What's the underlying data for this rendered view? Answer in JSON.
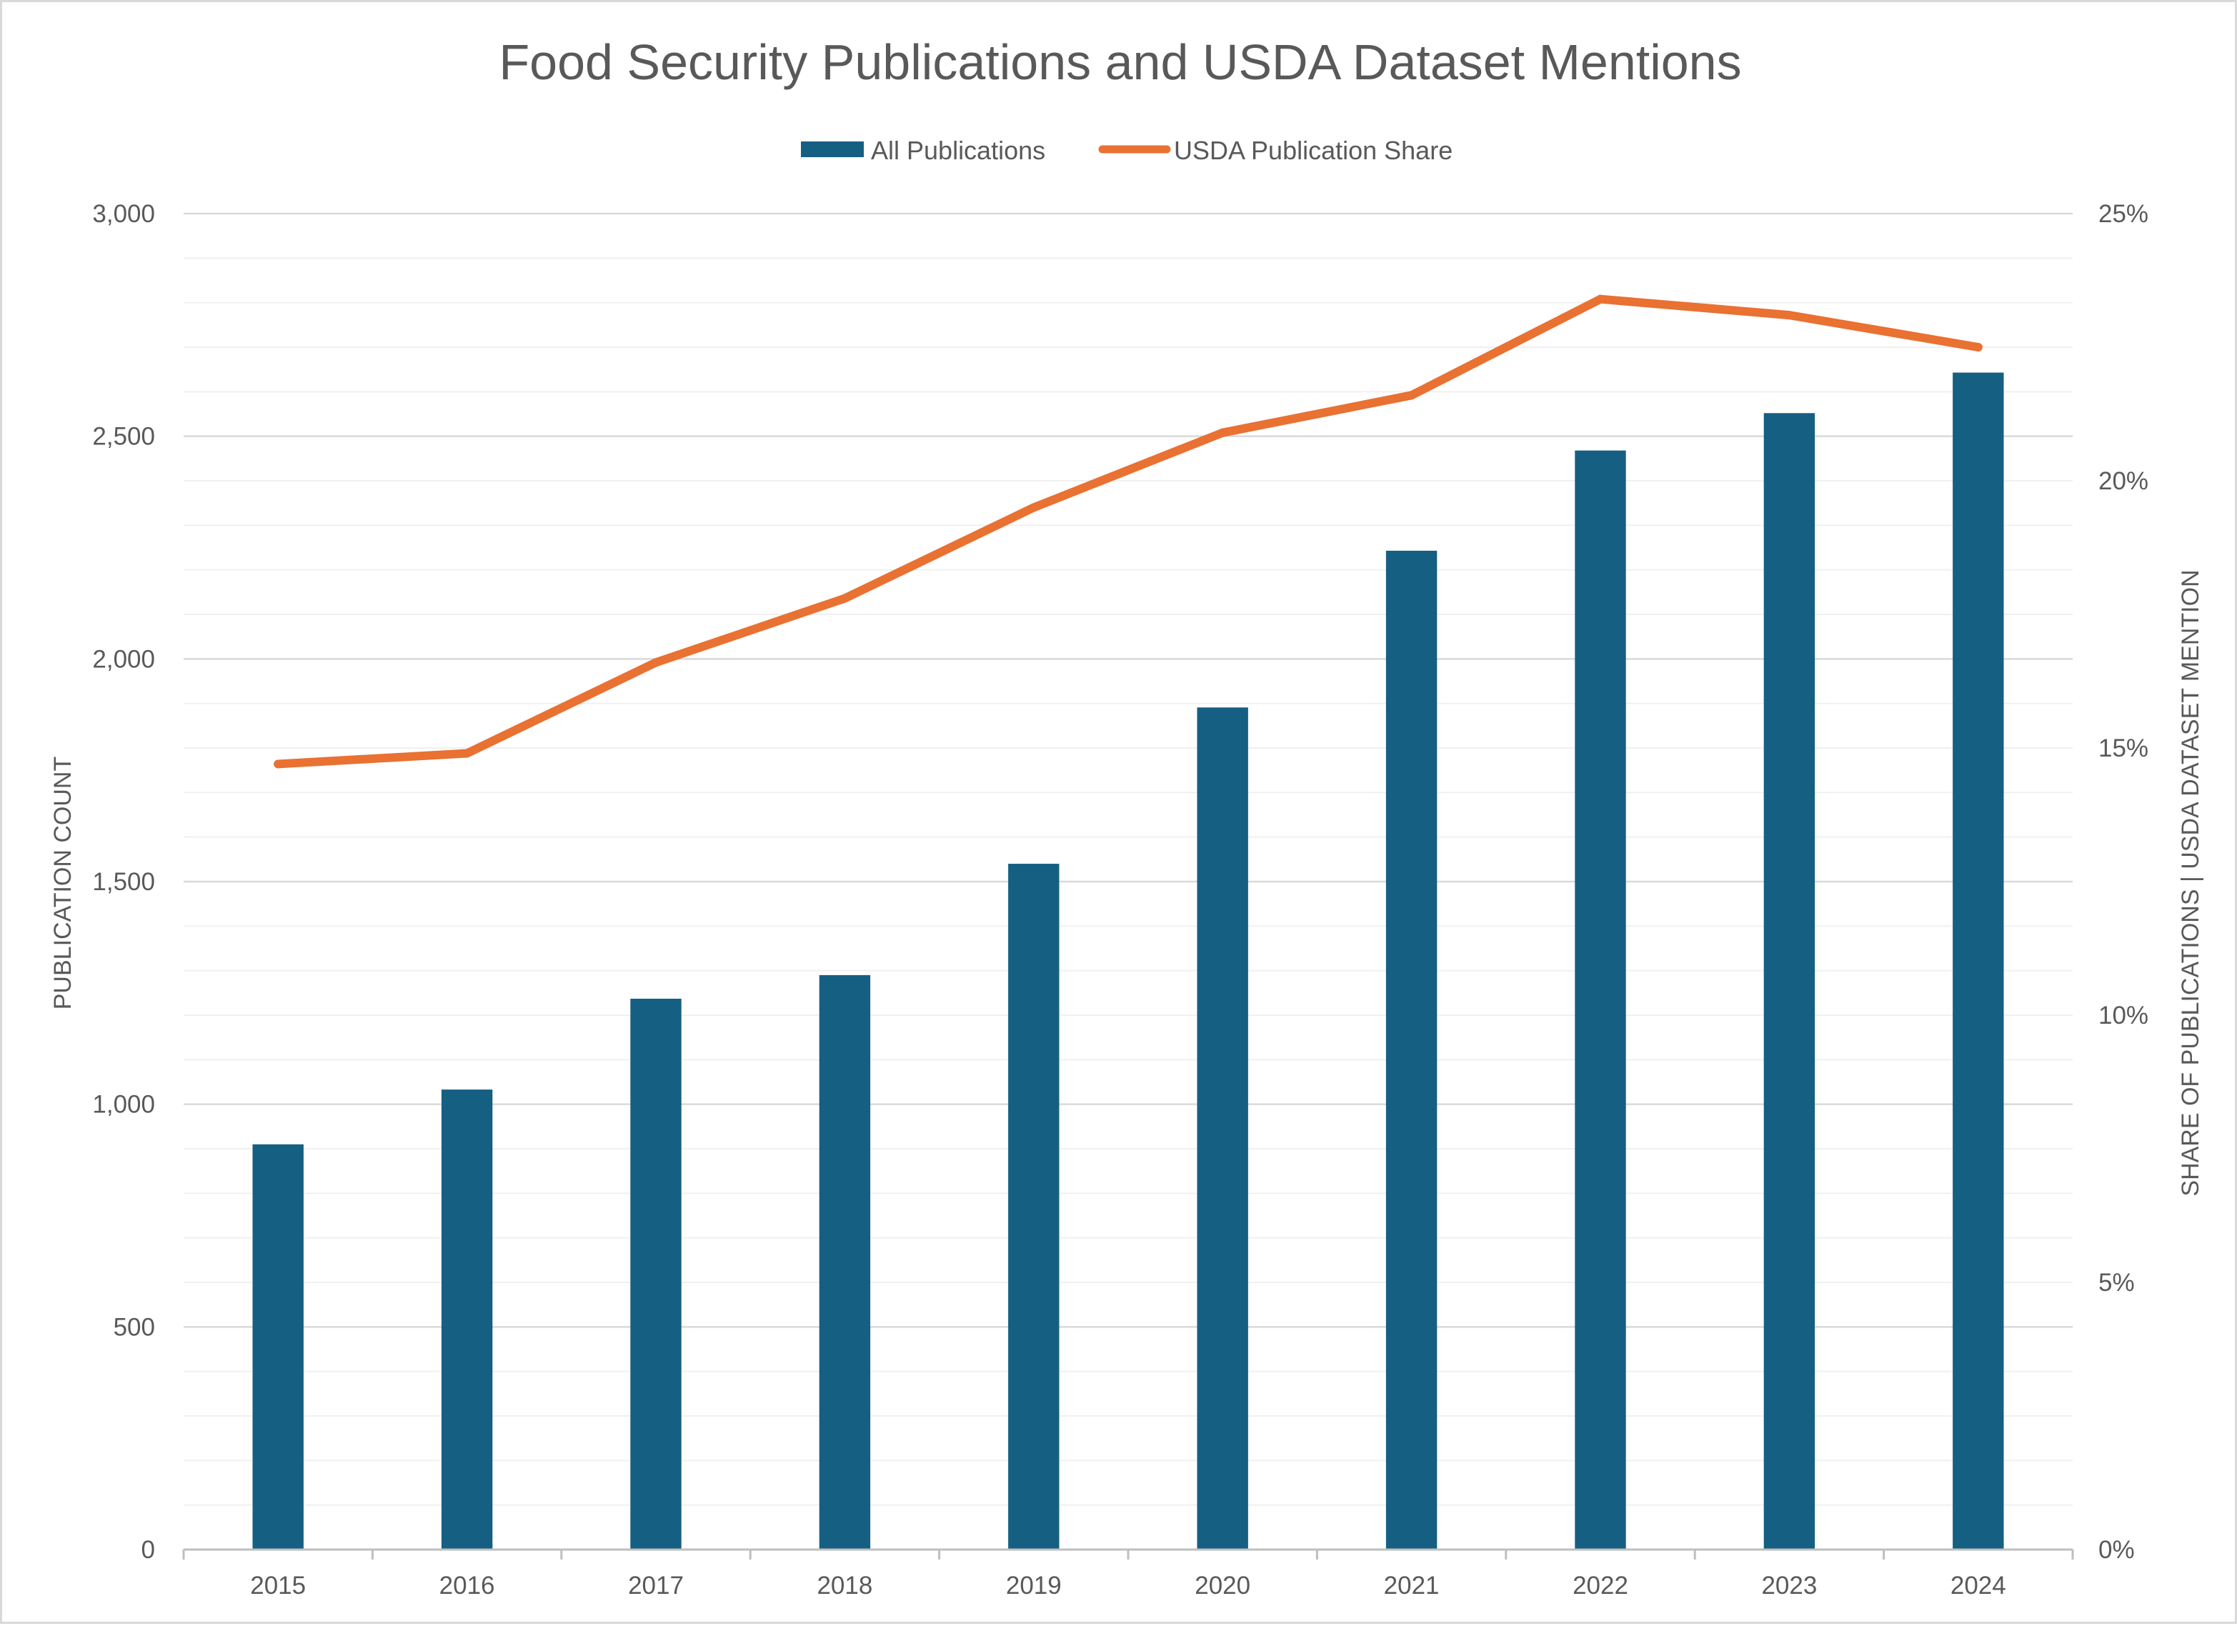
{
  "chart_data": {
    "type": "bar",
    "title": "Food Security Publications and USDA Dataset Mentions",
    "categories": [
      "2015",
      "2016",
      "2017",
      "2018",
      "2019",
      "2020",
      "2021",
      "2022",
      "2023",
      "2024"
    ],
    "series": [
      {
        "name": "All Publications",
        "type": "bar",
        "axis": "left",
        "color": "#155f82",
        "values": [
          910,
          1033,
          1237,
          1290,
          1540,
          1891,
          2243,
          2468,
          2552,
          2643
        ]
      },
      {
        "name": "USDA Publication Share",
        "type": "line",
        "axis": "right",
        "color": "#e97132",
        "values": [
          14.7,
          14.9,
          16.6,
          17.8,
          19.5,
          20.9,
          21.6,
          23.4,
          23.1,
          22.5
        ]
      }
    ],
    "y_left": {
      "label": "PUBLICATION COUNT",
      "min": 0,
      "max": 3000,
      "ticks": [
        "0",
        "500",
        "1,000",
        "1,500",
        "2,000",
        "2,500",
        "3,000"
      ]
    },
    "y_right": {
      "label": "SHARE OF PUBLICATIONS | USDA DATASET MENTION",
      "min": 0,
      "max": 25,
      "ticks": [
        "0%",
        "5%",
        "10%",
        "15%",
        "20%",
        "25%"
      ]
    },
    "xlabel": "",
    "grid": true,
    "minor_grid": true,
    "legend_position": "top"
  }
}
